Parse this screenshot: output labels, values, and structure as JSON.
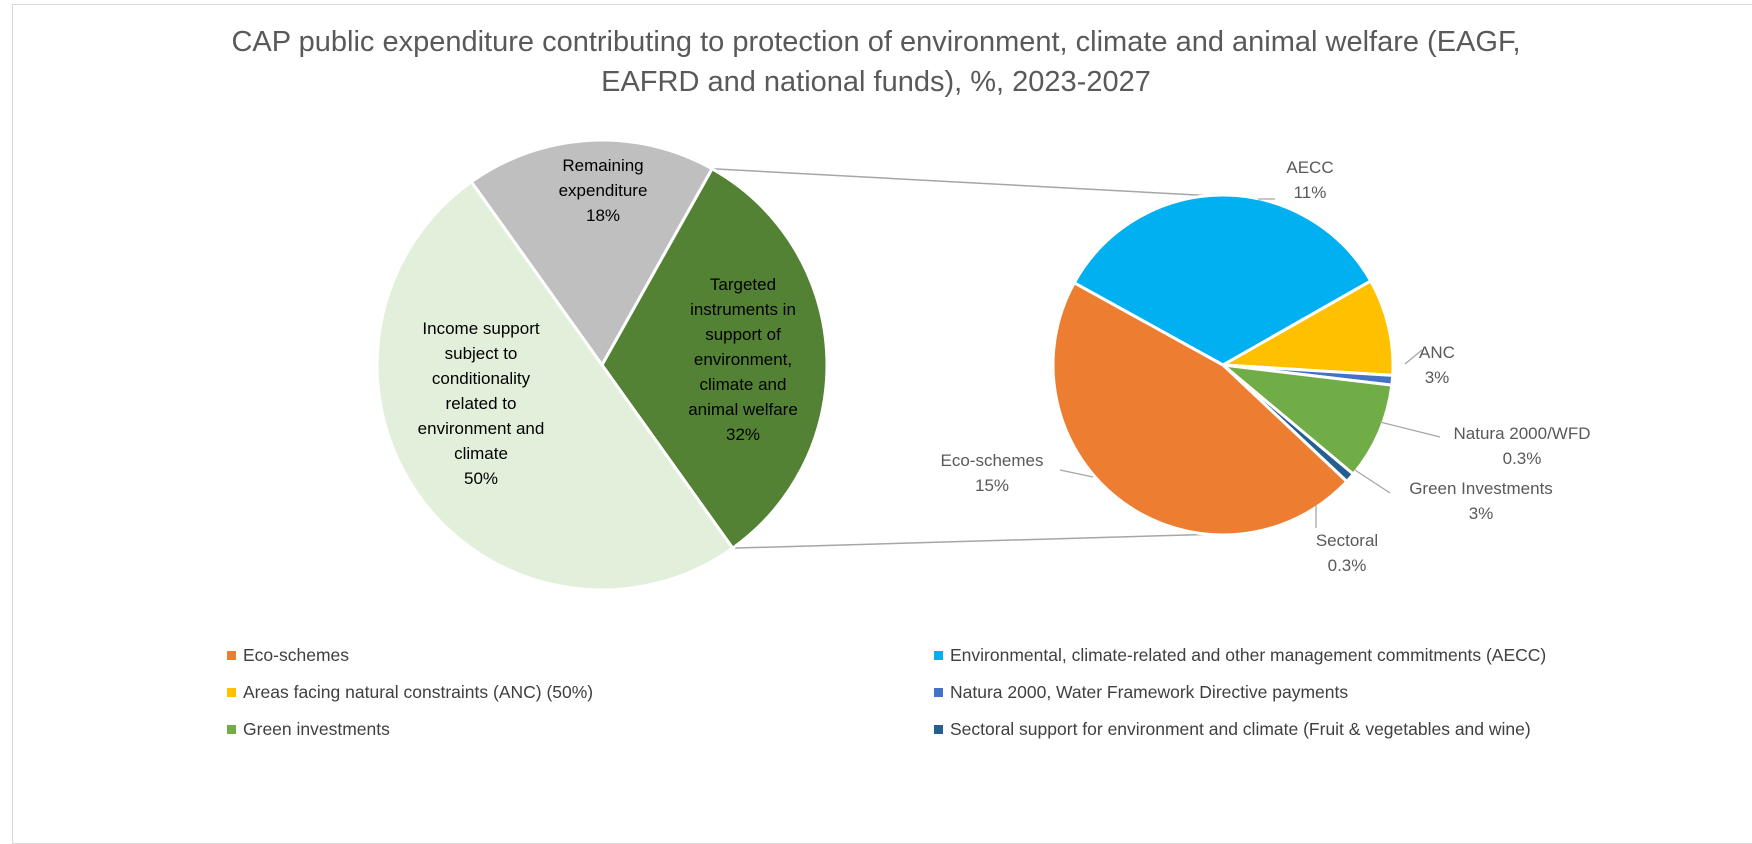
{
  "title_lines": [
    "CAP public expenditure contributing to protection of environment, climate and animal welfare (EAGF,",
    "EAFRD and national funds), %, 2023-2027"
  ],
  "chart_data": {
    "type": "pie",
    "title": "CAP public expenditure contributing to protection of environment, climate and animal welfare (EAGF, EAFRD and national funds), %, 2023-2027",
    "main_pie": {
      "slices": [
        {
          "label_lines": [
            "Remaining",
            "expenditure"
          ],
          "value": 18,
          "value_label": "18%",
          "color": "#bfbfbf"
        },
        {
          "label_lines": [
            "Targeted",
            "instruments in",
            "support of",
            "environment,",
            "climate and",
            "animal welfare"
          ],
          "value": 32,
          "value_label": "32%",
          "color": "#548235"
        },
        {
          "label_lines": [
            "Income support",
            "subject to",
            "conditionality",
            "related to",
            "environment and",
            "climate"
          ],
          "value": 50,
          "value_label": "50%",
          "color": "#e2efda"
        }
      ]
    },
    "secondary_pie": {
      "slices": [
        {
          "label": "AECC",
          "value": 11,
          "value_label": "11%",
          "color": "#00b0f0"
        },
        {
          "label": "ANC",
          "value": 3,
          "value_label": "3%",
          "color": "#ffc000"
        },
        {
          "label": "Natura 2000/WFD",
          "value": 0.3,
          "value_label": "0.3%",
          "color": "#4472c4"
        },
        {
          "label": "Green Investments",
          "value": 3,
          "value_label": "3%",
          "color": "#70ad47"
        },
        {
          "label": "Sectoral",
          "value": 0.3,
          "value_label": "0.3%",
          "color": "#255e91"
        },
        {
          "label": "Eco-schemes",
          "value": 15,
          "value_label": "15%",
          "color": "#ed7d31"
        }
      ]
    },
    "legend": [
      {
        "label": "Eco-schemes",
        "color": "#ed7d31"
      },
      {
        "label": "Environmental, climate-related and other management commitments (AECC)",
        "color": "#00b0f0"
      },
      {
        "label": "Areas facing natural constraints (ANC) (50%)",
        "color": "#ffc000"
      },
      {
        "label": "Natura 2000, Water Framework Directive payments",
        "color": "#4472c4"
      },
      {
        "label": "Green investments",
        "color": "#70ad47"
      },
      {
        "label": "Sectoral support for environment and climate (Fruit & vegetables and wine)",
        "color": "#255e91"
      }
    ],
    "legend_placement": "bottom"
  }
}
